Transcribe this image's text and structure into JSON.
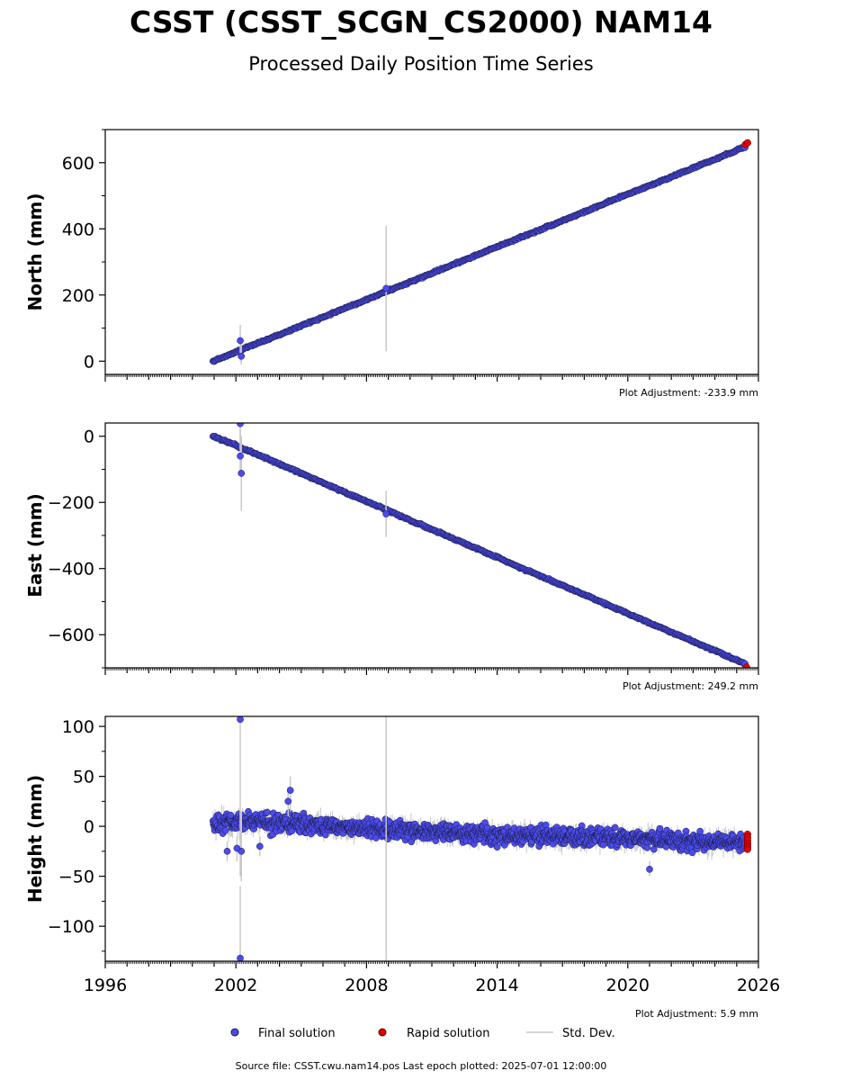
{
  "title": "CSST (CSST_SCGN_CS2000) NAM14",
  "subtitle": "Processed Daily Position Time Series",
  "footer": "Source file: CSST.cwu.nam14.pos  Last epoch plotted: 2025-07-01 12:00:00",
  "legend": {
    "final": "Final solution",
    "rapid": "Rapid solution",
    "std": "Std. Dev."
  },
  "colors": {
    "final": "#4b4bf0",
    "rapid": "#e00000",
    "std": "#c8c8c8",
    "edge": "#1a1a3a"
  },
  "chart_data": [
    {
      "type": "scatter",
      "ylabel": "North (mm)",
      "adjustment": "Plot Adjustment: -233.9 mm",
      "xlim": [
        1996,
        2026
      ],
      "ylim": [
        -40,
        700
      ],
      "yticks": [
        0,
        200,
        400,
        600
      ],
      "ytick_labels": [
        "0",
        "200",
        "400",
        "600"
      ],
      "grid": false,
      "final_series": {
        "x": [
          2000.95,
          2002.0,
          2003.0,
          2004.0,
          2005.0,
          2006.0,
          2007.0,
          2008.0,
          2009.0,
          2010.0,
          2011.0,
          2012.0,
          2013.0,
          2014.0,
          2015.0,
          2016.0,
          2017.0,
          2018.0,
          2019.0,
          2020.0,
          2021.0,
          2022.0,
          2023.0,
          2024.0,
          2025.0,
          2025.4
        ],
        "y": [
          0,
          28,
          55,
          80,
          107,
          133,
          160,
          186,
          213,
          239,
          266,
          293,
          319,
          346,
          372,
          398,
          425,
          451,
          478,
          505,
          531,
          557,
          584,
          610,
          637,
          648
        ]
      },
      "outliers": {
        "x": [
          2002.2,
          2002.25,
          2008.9
        ],
        "y": [
          62,
          15,
          220
        ],
        "err_low": [
          0,
          -10,
          30
        ],
        "err_high": [
          110,
          70,
          410
        ]
      },
      "rapid_series": {
        "x": [
          2025.4,
          2025.5
        ],
        "y": [
          655,
          660
        ]
      }
    },
    {
      "type": "scatter",
      "ylabel": "East (mm)",
      "adjustment": "Plot Adjustment: 249.2 mm",
      "xlim": [
        1996,
        2026
      ],
      "ylim": [
        -700,
        40
      ],
      "yticks": [
        0,
        -200,
        -400,
        -600
      ],
      "ytick_labels": [
        "0",
        "−200",
        "−400",
        "−600"
      ],
      "grid": false,
      "final_series": {
        "x": [
          2000.95,
          2002.0,
          2003.0,
          2004.0,
          2005.0,
          2006.0,
          2007.0,
          2008.0,
          2009.0,
          2010.0,
          2011.0,
          2012.0,
          2013.0,
          2014.0,
          2015.0,
          2016.0,
          2017.0,
          2018.0,
          2019.0,
          2020.0,
          2021.0,
          2022.0,
          2023.0,
          2024.0,
          2025.0,
          2025.4
        ],
        "y": [
          0,
          -28,
          -56,
          -84,
          -112,
          -141,
          -169,
          -197,
          -225,
          -254,
          -282,
          -310,
          -338,
          -366,
          -395,
          -423,
          -451,
          -479,
          -507,
          -536,
          -564,
          -592,
          -620,
          -648,
          -677,
          -690
        ]
      },
      "outliers": {
        "x": [
          2002.2,
          2002.2,
          2002.25,
          2008.9
        ],
        "y": [
          38,
          -60,
          -112,
          -235
        ],
        "err_low": [
          -40,
          -120,
          -225,
          -305
        ],
        "err_high": [
          40,
          20,
          0,
          -165
        ]
      },
      "rapid_series": {
        "x": [
          2025.45
        ],
        "y": [
          -698
        ]
      }
    },
    {
      "type": "scatter",
      "ylabel": "Height (mm)",
      "adjustment": "Plot Adjustment: 5.9 mm",
      "xlim": [
        1996,
        2026
      ],
      "ylim": [
        -135,
        110
      ],
      "yticks": [
        100,
        50,
        0,
        -50,
        -100
      ],
      "ytick_labels": [
        "100",
        "50",
        "0",
        "−50",
        "−100"
      ],
      "xticks": [
        1996,
        2002,
        2008,
        2014,
        2020,
        2026
      ],
      "xtick_labels": [
        "1996",
        "2002",
        "2008",
        "2014",
        "2020",
        "2026"
      ],
      "grid": false,
      "trend": {
        "x": [
          2000.95,
          2003.0,
          2005.0,
          2007.0,
          2009.0,
          2011.0,
          2013.0,
          2015.0,
          2017.0,
          2019.0,
          2021.0,
          2023.0,
          2025.4
        ],
        "y": [
          2,
          5,
          2,
          -1,
          -3,
          -5,
          -8,
          -9,
          -11,
          -12,
          -13,
          -15,
          -16
        ],
        "spread": 9
      },
      "outliers": {
        "x": [
          2002.2,
          2002.2,
          2002.25,
          2004.5,
          2004.4,
          2001.6,
          2002.05,
          2003.1,
          2021.0,
          2008.9
        ],
        "y": [
          107,
          -132,
          -25,
          36,
          25,
          -25,
          -22,
          -20,
          -43,
          0
        ],
        "err_low": [
          -50,
          -135,
          -55,
          15,
          10,
          -35,
          -35,
          -30,
          -50,
          -135
        ],
        "err_high": [
          110,
          -60,
          15,
          50,
          40,
          -15,
          -10,
          -10,
          -35,
          110
        ]
      },
      "rapid_series": {
        "x": [
          2025.5,
          2025.5,
          2025.5,
          2025.5,
          2025.5,
          2025.5,
          2025.5
        ],
        "y": [
          -8,
          -11,
          -14,
          -17,
          -19,
          -21,
          -23
        ]
      }
    }
  ]
}
